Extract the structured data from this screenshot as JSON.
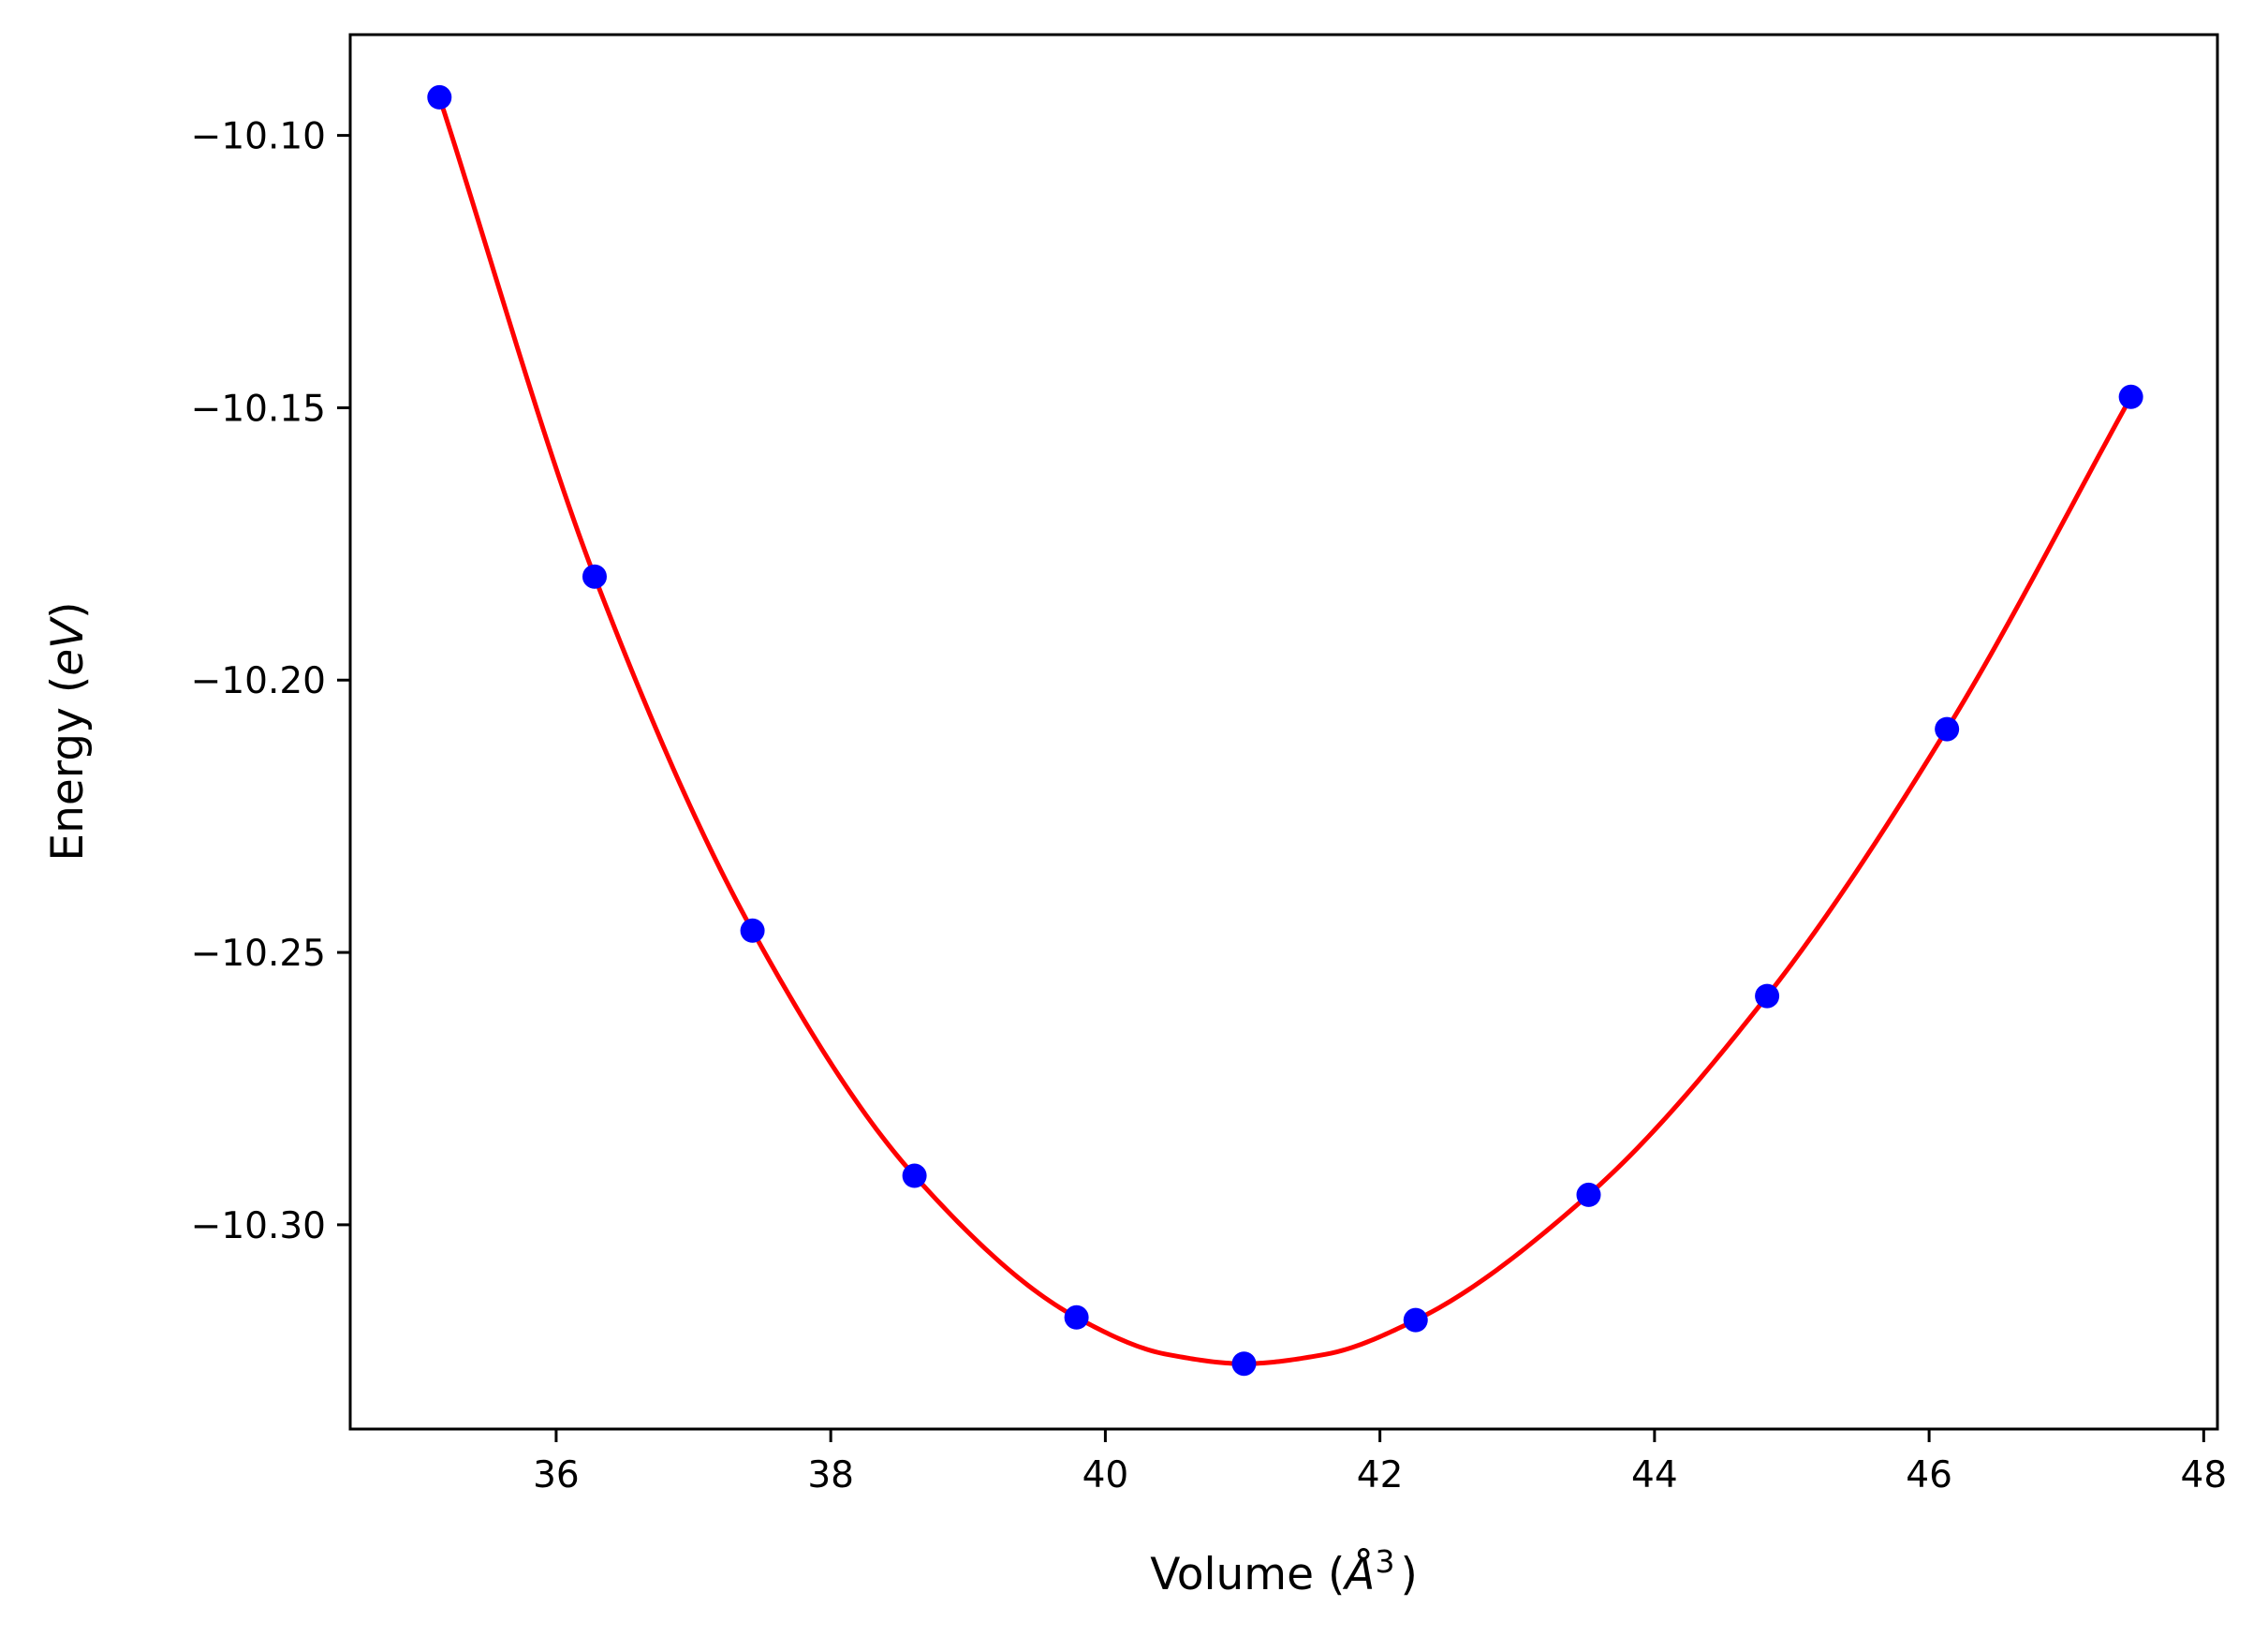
{
  "chart_data": {
    "type": "scatter",
    "xlabel": {
      "prefix": "Volume (",
      "unit_symbol": "Å",
      "superscript": "3",
      "suffix": ")"
    },
    "ylabel": {
      "prefix": "Energy (",
      "unit": "eV",
      "suffix": ")"
    },
    "xlim": [
      34.5,
      48.1
    ],
    "ylim": [
      -10.3375,
      -10.0815
    ],
    "x_ticks": [
      36,
      38,
      40,
      42,
      44,
      46,
      48
    ],
    "x_tick_labels": [
      "36",
      "38",
      "40",
      "42",
      "44",
      "46",
      "48"
    ],
    "y_ticks": [
      -10.1,
      -10.15,
      -10.2,
      -10.25,
      -10.3
    ],
    "y_tick_labels": [
      "−10.10",
      "−10.15",
      "−10.20",
      "−10.25",
      "−10.30"
    ],
    "grid": false,
    "series": [
      {
        "type": "scatter",
        "color": "#0000ff",
        "x": [
          35.15,
          36.28,
          37.43,
          38.61,
          39.79,
          41.01,
          42.26,
          43.52,
          44.82,
          46.13,
          47.47
        ],
        "y": [
          -10.093,
          -10.181,
          -10.246,
          -10.291,
          -10.317,
          -10.3255,
          -10.3175,
          -10.2945,
          -10.258,
          -10.209,
          -10.148
        ]
      },
      {
        "type": "line",
        "color": "#ff0000",
        "x": [
          35.15,
          36.28,
          37.43,
          38.61,
          39.79,
          40.45,
          41.01,
          41.6,
          42.26,
          43.52,
          44.82,
          46.13,
          47.47
        ],
        "y": [
          -10.093,
          -10.181,
          -10.246,
          -10.291,
          -10.317,
          -10.3238,
          -10.3255,
          -10.3238,
          -10.3175,
          -10.2945,
          -10.258,
          -10.209,
          -10.148
        ]
      }
    ]
  }
}
